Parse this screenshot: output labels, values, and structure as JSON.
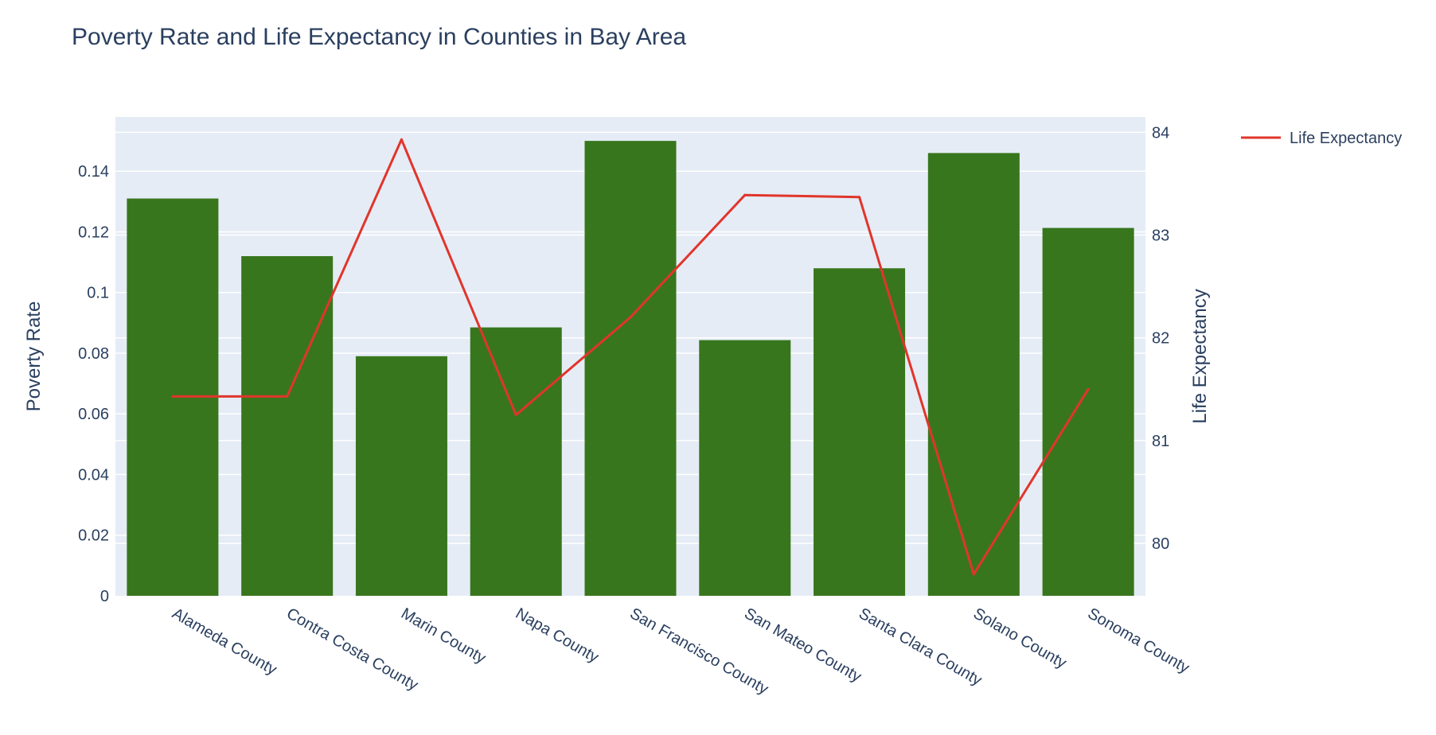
{
  "chart_data": {
    "type": "bar+line",
    "title": "Poverty Rate and Life Expectancy in Counties in Bay Area",
    "categories": [
      "Alameda County",
      "Contra Costa County",
      "Marin County",
      "Napa County",
      "San Francisco County",
      "San Mateo County",
      "Santa Clara County",
      "Solano County",
      "Sonoma County"
    ],
    "bars": {
      "axis": "left",
      "color": "#38761d",
      "values": [
        0.131,
        0.112,
        0.079,
        0.0885,
        0.15,
        0.0843,
        0.108,
        0.146,
        0.1213
      ]
    },
    "line": {
      "name": "Life Expectancy",
      "axis": "right",
      "color": "#e1352b",
      "values": [
        81.43,
        81.43,
        83.93,
        81.25,
        82.2,
        83.39,
        83.37,
        79.7,
        81.5
      ]
    },
    "y_left": {
      "label": "Poverty Rate",
      "range": [
        0,
        0.1579
      ],
      "ticks": [
        0,
        0.02,
        0.04,
        0.06,
        0.08,
        0.1,
        0.12,
        0.14
      ],
      "tick_labels": [
        "0",
        "0.02",
        "0.04",
        "0.06",
        "0.08",
        "0.1",
        "0.12",
        "0.14"
      ]
    },
    "y_right": {
      "label": "Life Expectancy",
      "range": [
        79.49,
        84.15
      ],
      "ticks": [
        80,
        81,
        82,
        83,
        84
      ],
      "tick_labels": [
        "80",
        "81",
        "82",
        "83",
        "84"
      ]
    },
    "legend": {
      "position": "top-right",
      "entries": [
        "Life Expectancy"
      ]
    },
    "grid": true,
    "plot_background": "#e5ecf6"
  }
}
